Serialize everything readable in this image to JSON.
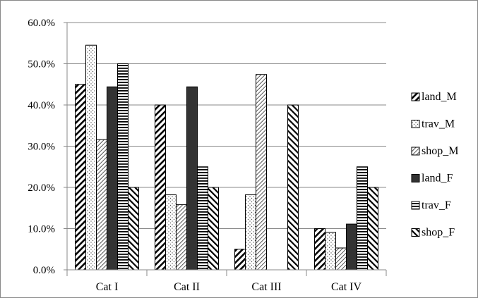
{
  "chart_data": {
    "type": "bar",
    "categories": [
      "Cat I",
      "Cat II",
      "Cat III",
      "Cat IV"
    ],
    "series": [
      {
        "name": "land_M",
        "pattern": "diag-thick",
        "values": [
          45.0,
          40.0,
          5.0,
          10.0
        ]
      },
      {
        "name": "trav_M",
        "pattern": "dots",
        "values": [
          54.5,
          18.2,
          18.2,
          9.1
        ]
      },
      {
        "name": "shop_M",
        "pattern": "diag-thin",
        "values": [
          31.6,
          15.8,
          47.4,
          5.3
        ]
      },
      {
        "name": "land_F",
        "pattern": "solid",
        "values": [
          44.4,
          44.4,
          0.0,
          11.1
        ]
      },
      {
        "name": "trav_F",
        "pattern": "horizontal",
        "values": [
          50.0,
          25.0,
          0.0,
          25.0
        ]
      },
      {
        "name": "shop_F",
        "pattern": "back-diag",
        "values": [
          20.0,
          20.0,
          40.0,
          20.0
        ]
      }
    ],
    "y_ticks": [
      "0.0%",
      "10.0%",
      "20.0%",
      "30.0%",
      "40.0%",
      "50.0%",
      "60.0%"
    ],
    "ylim": [
      0,
      60
    ],
    "y_unit": "percent",
    "grid": true,
    "legend_position": "right",
    "colors": {
      "bar_fill": "#333333",
      "bar_stroke": "#000000",
      "grid": "#888888",
      "text": "#000000"
    }
  }
}
